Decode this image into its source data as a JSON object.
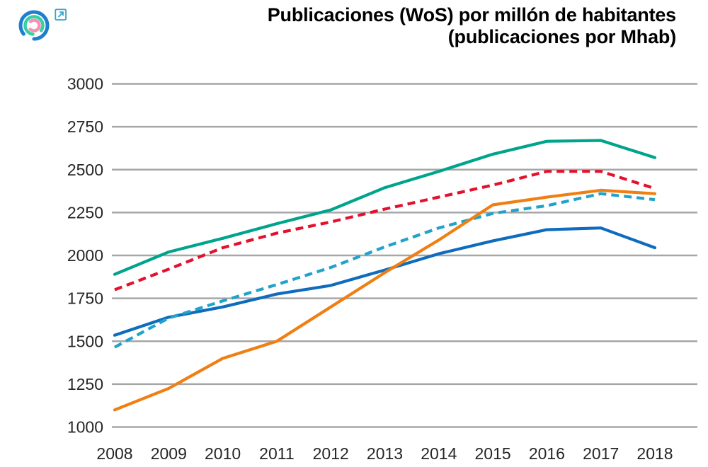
{
  "title": {
    "line1": "Publicaciones (WoS) por millón de habitantes",
    "line2": "(publicaciones por Mhab)"
  },
  "logo": {
    "outer_color": "#1E7FD0",
    "middle_color": "#38CFA2",
    "inner_color": "#F593B5",
    "link_icon_color": "#3AA6C9"
  },
  "chart_data": {
    "type": "line",
    "title": "Publicaciones (WoS) por millón de habitantes (publicaciones por Mhab)",
    "x": [
      2008,
      2009,
      2010,
      2011,
      2012,
      2013,
      2014,
      2015,
      2016,
      2017,
      2018
    ],
    "x_labels": [
      "2008",
      "2009",
      "2010",
      "2011",
      "2012",
      "2013",
      "2014",
      "2015",
      "2016",
      "2017",
      "2018"
    ],
    "y_ticks": [
      3000,
      2750,
      2500,
      2250,
      2000,
      1750,
      1500,
      1250,
      1000
    ],
    "y_tick_labels": [
      "3000",
      "2750",
      "2500",
      "2250",
      "2000",
      "1750",
      "1500",
      "1250",
      "1000"
    ],
    "ylim": [
      1000,
      3000
    ],
    "xlabel": "",
    "ylabel": "",
    "grid": "horizontal-only",
    "grid_color": "#A6A6A6",
    "axis_text_color": "#262626",
    "legend": "none",
    "series": [
      {
        "name": "teal-solid",
        "color": "#00A38B",
        "style": "solid",
        "values": [
          1890,
          2020,
          2100,
          2185,
          2265,
          2395,
          2490,
          2590,
          2665,
          2670,
          2570
        ]
      },
      {
        "name": "red-dashed",
        "color": "#E3112D",
        "style": "dashed",
        "values": [
          1800,
          1920,
          2045,
          2130,
          2195,
          2270,
          2340,
          2410,
          2490,
          2490,
          2390
        ]
      },
      {
        "name": "blue-solid",
        "color": "#0F6CBD",
        "style": "solid",
        "values": [
          1535,
          1640,
          1700,
          1775,
          1825,
          1915,
          2010,
          2085,
          2150,
          2160,
          2045
        ]
      },
      {
        "name": "cyan-dashed",
        "color": "#1FA3CC",
        "style": "dashed",
        "values": [
          1465,
          1635,
          1735,
          1830,
          1930,
          2050,
          2160,
          2245,
          2290,
          2360,
          2325
        ]
      },
      {
        "name": "orange-solid",
        "color": "#F07F13",
        "style": "solid",
        "values": [
          1100,
          1225,
          1400,
          1500,
          1700,
          1900,
          2090,
          2295,
          2340,
          2380,
          2360
        ]
      }
    ]
  }
}
